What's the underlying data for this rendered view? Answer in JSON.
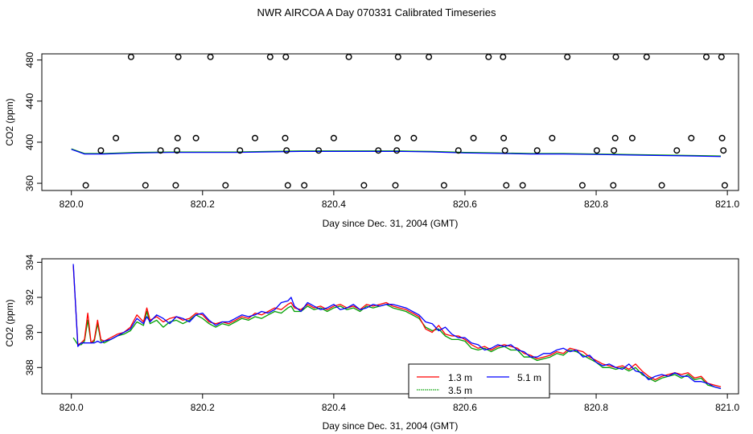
{
  "title": "NWR AIRCOA A  Day 070331  Calibrated Timeseries",
  "chart_data": [
    {
      "type": "scatter",
      "xlabel": "Day since Dec. 31, 2004 (GMT)",
      "ylabel": "CO2 (ppm)",
      "xlim": [
        819.955,
        821.017
      ],
      "ylim": [
        353,
        486
      ],
      "x_ticks": [
        820.0,
        820.2,
        820.4,
        820.6,
        820.8,
        821.0
      ],
      "x_tick_labels": [
        "820.0",
        "820.2",
        "820.4",
        "820.6",
        "820.8",
        "821.0"
      ],
      "y_ticks": [
        360,
        400,
        440,
        480
      ],
      "y_tick_labels": [
        "360",
        "400",
        "440",
        "480"
      ],
      "grid": false,
      "points": [
        {
          "x": 820.022,
          "y": 358
        },
        {
          "x": 820.045,
          "y": 392
        },
        {
          "x": 820.068,
          "y": 404
        },
        {
          "x": 820.091,
          "y": 483
        },
        {
          "x": 820.113,
          "y": 358
        },
        {
          "x": 820.136,
          "y": 392
        },
        {
          "x": 820.159,
          "y": 358
        },
        {
          "x": 820.161,
          "y": 392
        },
        {
          "x": 820.162,
          "y": 404
        },
        {
          "x": 820.163,
          "y": 483
        },
        {
          "x": 820.19,
          "y": 404
        },
        {
          "x": 820.212,
          "y": 483
        },
        {
          "x": 820.235,
          "y": 358
        },
        {
          "x": 820.257,
          "y": 392
        },
        {
          "x": 820.28,
          "y": 404
        },
        {
          "x": 820.303,
          "y": 483
        },
        {
          "x": 820.326,
          "y": 404
        },
        {
          "x": 820.327,
          "y": 483
        },
        {
          "x": 820.328,
          "y": 392
        },
        {
          "x": 820.33,
          "y": 358
        },
        {
          "x": 820.355,
          "y": 358
        },
        {
          "x": 820.377,
          "y": 392
        },
        {
          "x": 820.4,
          "y": 404
        },
        {
          "x": 820.423,
          "y": 483
        },
        {
          "x": 820.446,
          "y": 358
        },
        {
          "x": 820.468,
          "y": 392
        },
        {
          "x": 820.494,
          "y": 358
        },
        {
          "x": 820.496,
          "y": 392
        },
        {
          "x": 820.497,
          "y": 404
        },
        {
          "x": 820.498,
          "y": 483
        },
        {
          "x": 820.522,
          "y": 404
        },
        {
          "x": 820.545,
          "y": 483
        },
        {
          "x": 820.568,
          "y": 358
        },
        {
          "x": 820.59,
          "y": 392
        },
        {
          "x": 820.613,
          "y": 404
        },
        {
          "x": 820.636,
          "y": 483
        },
        {
          "x": 820.658,
          "y": 483
        },
        {
          "x": 820.659,
          "y": 404
        },
        {
          "x": 820.661,
          "y": 392
        },
        {
          "x": 820.663,
          "y": 358
        },
        {
          "x": 820.688,
          "y": 358
        },
        {
          "x": 820.71,
          "y": 392
        },
        {
          "x": 820.733,
          "y": 404
        },
        {
          "x": 820.756,
          "y": 483
        },
        {
          "x": 820.779,
          "y": 358
        },
        {
          "x": 820.801,
          "y": 392
        },
        {
          "x": 820.826,
          "y": 358
        },
        {
          "x": 820.827,
          "y": 392
        },
        {
          "x": 820.829,
          "y": 404
        },
        {
          "x": 820.83,
          "y": 483
        },
        {
          "x": 820.855,
          "y": 404
        },
        {
          "x": 820.877,
          "y": 483
        },
        {
          "x": 820.9,
          "y": 358
        },
        {
          "x": 820.923,
          "y": 392
        },
        {
          "x": 820.945,
          "y": 404
        },
        {
          "x": 820.968,
          "y": 483
        },
        {
          "x": 820.991,
          "y": 483
        },
        {
          "x": 820.992,
          "y": 404
        },
        {
          "x": 820.994,
          "y": 392
        },
        {
          "x": 820.996,
          "y": 358
        }
      ],
      "line": {
        "name": "level",
        "x": [
          820.0,
          820.02,
          820.05,
          820.1,
          820.15,
          820.2,
          820.25,
          820.3,
          820.35,
          820.4,
          820.45,
          820.5,
          820.55,
          820.6,
          820.65,
          820.7,
          820.75,
          820.8,
          820.85,
          820.9,
          820.95,
          820.99
        ],
        "y": [
          393.5,
          389,
          389,
          390,
          390.5,
          390.5,
          390.5,
          391,
          391.5,
          391.5,
          391.5,
          391.5,
          391,
          390,
          389.5,
          389,
          389,
          388.5,
          388,
          387.5,
          387,
          386.5
        ]
      }
    },
    {
      "type": "line",
      "xlabel": "Day since Dec. 31, 2004 (GMT)",
      "ylabel": "CO2 (ppm)",
      "xlim": [
        819.955,
        821.017
      ],
      "ylim": [
        386.5,
        394.2
      ],
      "x_ticks": [
        820.0,
        820.2,
        820.4,
        820.6,
        820.8,
        821.0
      ],
      "x_tick_labels": [
        "820.0",
        "820.2",
        "820.4",
        "820.6",
        "820.8",
        "821.0"
      ],
      "y_ticks": [
        388,
        390,
        392,
        394
      ],
      "y_tick_labels": [
        "388",
        "390",
        "392",
        "394"
      ],
      "grid": false,
      "legend_position": "bottom-center",
      "x": [
        820.003,
        820.01,
        820.015,
        820.02,
        820.025,
        820.03,
        820.035,
        820.04,
        820.045,
        820.05,
        820.06,
        820.07,
        820.08,
        820.09,
        820.1,
        820.11,
        820.115,
        820.12,
        820.13,
        820.14,
        820.15,
        820.16,
        820.17,
        820.18,
        820.19,
        820.2,
        820.21,
        820.22,
        820.23,
        820.24,
        820.25,
        820.26,
        820.27,
        820.28,
        820.29,
        820.3,
        820.31,
        820.32,
        820.33,
        820.335,
        820.34,
        820.35,
        820.36,
        820.37,
        820.38,
        820.39,
        820.4,
        820.41,
        820.42,
        820.43,
        820.44,
        820.45,
        820.46,
        820.47,
        820.48,
        820.49,
        820.5,
        820.51,
        820.52,
        820.53,
        820.54,
        820.55,
        820.56,
        820.57,
        820.58,
        820.59,
        820.6,
        820.61,
        820.62,
        820.63,
        820.64,
        820.65,
        820.66,
        820.67,
        820.68,
        820.69,
        820.7,
        820.71,
        820.72,
        820.73,
        820.74,
        820.75,
        820.76,
        820.77,
        820.78,
        820.79,
        820.8,
        820.81,
        820.82,
        820.83,
        820.84,
        820.85,
        820.86,
        820.87,
        820.88,
        820.89,
        820.9,
        820.91,
        820.92,
        820.93,
        820.94,
        820.95,
        820.96,
        820.97,
        820.98,
        820.99
      ],
      "series": [
        {
          "name": "1.3 m",
          "color": "#ff0000",
          "values": [
            393.8,
            389.3,
            389.4,
            389.6,
            391.1,
            389.4,
            389.6,
            390.7,
            389.6,
            389.5,
            389.7,
            389.9,
            390.0,
            390.3,
            391.0,
            390.6,
            391.4,
            390.7,
            390.9,
            390.6,
            390.8,
            390.9,
            390.7,
            390.8,
            391.1,
            391.0,
            390.6,
            390.5,
            390.6,
            390.5,
            390.7,
            390.9,
            390.8,
            391.1,
            391.0,
            391.2,
            391.4,
            391.3,
            391.6,
            391.7,
            391.4,
            391.3,
            391.6,
            391.4,
            391.5,
            391.3,
            391.5,
            391.6,
            391.4,
            391.5,
            391.3,
            391.6,
            391.5,
            391.6,
            391.7,
            391.5,
            391.4,
            391.3,
            391.1,
            390.9,
            390.2,
            390.0,
            390.4,
            389.9,
            389.8,
            389.8,
            389.6,
            389.3,
            389.1,
            389.2,
            389.0,
            389.2,
            389.3,
            389.2,
            389.1,
            388.8,
            388.7,
            388.5,
            388.6,
            388.7,
            388.9,
            388.8,
            389.1,
            389.0,
            388.9,
            388.6,
            388.4,
            388.2,
            388.1,
            388.0,
            388.1,
            387.9,
            388.2,
            387.8,
            387.5,
            387.3,
            387.5,
            387.6,
            387.7,
            387.6,
            387.7,
            387.4,
            387.5,
            387.1,
            387.0,
            386.9
          ]
        },
        {
          "name": "5.1 m",
          "color": "#0000ff",
          "values": [
            393.9,
            389.2,
            389.4,
            389.4,
            389.4,
            389.4,
            389.4,
            389.5,
            389.4,
            389.5,
            389.6,
            389.8,
            390.0,
            390.2,
            390.8,
            390.5,
            390.9,
            390.6,
            391.0,
            390.8,
            390.5,
            390.9,
            390.8,
            390.6,
            391.0,
            391.1,
            390.7,
            390.4,
            390.6,
            390.6,
            390.8,
            391.0,
            390.9,
            391.0,
            391.2,
            391.1,
            391.3,
            391.7,
            391.8,
            392.0,
            391.5,
            391.2,
            391.7,
            391.5,
            391.3,
            391.4,
            391.6,
            391.3,
            391.4,
            391.6,
            391.3,
            391.4,
            391.6,
            391.5,
            391.6,
            391.6,
            391.5,
            391.4,
            391.2,
            391.0,
            390.6,
            390.5,
            390.1,
            390.3,
            389.9,
            389.7,
            389.7,
            389.4,
            389.3,
            389.0,
            389.1,
            389.3,
            389.2,
            389.3,
            389.0,
            388.9,
            388.6,
            388.6,
            388.8,
            388.8,
            389.0,
            389.1,
            388.9,
            389.0,
            388.6,
            388.7,
            388.3,
            388.1,
            388.2,
            388.0,
            387.9,
            388.2,
            387.8,
            387.7,
            387.3,
            387.5,
            387.6,
            387.5,
            387.7,
            387.5,
            387.5,
            387.2,
            387.2,
            387.1,
            386.9,
            386.8
          ]
        },
        {
          "name": "3.5 m",
          "color": "#00a000",
          "values": [
            389.7,
            389.3,
            389.3,
            389.5,
            390.7,
            389.4,
            389.5,
            390.5,
            389.5,
            389.4,
            389.6,
            389.8,
            389.9,
            390.1,
            390.6,
            390.4,
            391.2,
            390.5,
            390.7,
            390.3,
            390.6,
            390.7,
            390.5,
            390.7,
            391.0,
            390.8,
            390.5,
            390.3,
            390.5,
            390.4,
            390.6,
            390.8,
            390.7,
            390.9,
            390.8,
            391.0,
            391.2,
            391.1,
            391.4,
            391.5,
            391.2,
            391.2,
            391.5,
            391.3,
            391.4,
            391.2,
            391.4,
            391.5,
            391.3,
            391.4,
            391.2,
            391.5,
            391.4,
            391.5,
            391.6,
            391.4,
            391.3,
            391.2,
            391.0,
            390.8,
            390.3,
            390.1,
            390.2,
            389.8,
            389.6,
            389.6,
            389.5,
            389.1,
            389.0,
            389.1,
            388.9,
            389.1,
            389.2,
            389.0,
            389.0,
            388.6,
            388.6,
            388.4,
            388.5,
            388.6,
            388.8,
            388.7,
            389.0,
            388.9,
            388.7,
            388.5,
            388.3,
            388.0,
            388.0,
            387.9,
            388.0,
            387.8,
            388.0,
            387.6,
            387.4,
            387.2,
            387.4,
            387.5,
            387.6,
            387.4,
            387.6,
            387.3,
            387.4,
            387.0,
            386.9,
            386.8
          ]
        }
      ]
    }
  ]
}
